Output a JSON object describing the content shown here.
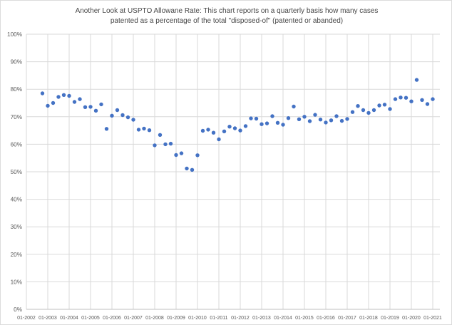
{
  "title": {
    "line1": "Another Look at USPTO Allowane Rate: This chart reports on a quarterly basis how many cases",
    "line2": "patented as a percentage of the total \"disposed-of\" (patented or abanded)"
  },
  "chart_data": {
    "type": "scatter",
    "title": "Another Look at USPTO Allowane Rate: This chart reports on a quarterly basis how many cases patented as a percentage of the total \"disposed-of\" (patented or abanded)",
    "xlabel": "",
    "ylabel": "",
    "ylim": [
      0,
      100
    ],
    "grid": true,
    "legend": false,
    "y_tick_labels": [
      "0%",
      "10%",
      "20%",
      "30%",
      "40%",
      "50%",
      "60%",
      "70%",
      "80%",
      "90%",
      "100%"
    ],
    "x_tick_labels": [
      "01-2002",
      "01-2003",
      "01-2004",
      "01-2005",
      "01-2006",
      "01-2007",
      "01-2008",
      "01-2009",
      "01-2010",
      "01-2011",
      "01-2012",
      "01-2013",
      "01-2014",
      "01-2015",
      "01-2016",
      "01-2017",
      "01-2018",
      "01-2019",
      "01-2020",
      "01-2021"
    ],
    "x": [
      "10-2002",
      "01-2003",
      "04-2003",
      "07-2003",
      "10-2003",
      "01-2004",
      "04-2004",
      "07-2004",
      "10-2004",
      "01-2005",
      "04-2005",
      "07-2005",
      "10-2005",
      "01-2006",
      "04-2006",
      "07-2006",
      "10-2006",
      "01-2007",
      "04-2007",
      "07-2007",
      "10-2007",
      "01-2008",
      "04-2008",
      "07-2008",
      "10-2008",
      "01-2009",
      "04-2009",
      "07-2009",
      "10-2009",
      "01-2010",
      "04-2010",
      "07-2010",
      "10-2010",
      "01-2011",
      "04-2011",
      "07-2011",
      "10-2011",
      "01-2012",
      "04-2012",
      "07-2012",
      "10-2012",
      "01-2013",
      "04-2013",
      "07-2013",
      "10-2013",
      "01-2014",
      "04-2014",
      "07-2014",
      "10-2014",
      "01-2015",
      "04-2015",
      "07-2015",
      "10-2015",
      "01-2016",
      "04-2016",
      "07-2016",
      "10-2016",
      "01-2017",
      "04-2017",
      "07-2017",
      "10-2017",
      "01-2018",
      "04-2018",
      "07-2018",
      "10-2018",
      "01-2019",
      "04-2019",
      "07-2019",
      "10-2019",
      "01-2020",
      "04-2020",
      "07-2020",
      "10-2020",
      "01-2021"
    ],
    "values": [
      78.5,
      74.0,
      75.0,
      77.2,
      77.9,
      77.6,
      75.4,
      76.4,
      73.5,
      73.6,
      72.2,
      74.5,
      65.6,
      70.4,
      72.4,
      70.6,
      69.8,
      68.9,
      65.3,
      65.7,
      65.1,
      59.6,
      63.4,
      60.0,
      60.2,
      56.1,
      56.7,
      51.2,
      50.7,
      56.0,
      64.9,
      65.3,
      64.2,
      61.8,
      64.7,
      66.4,
      65.8,
      65.0,
      66.6,
      69.4,
      69.3,
      67.3,
      67.6,
      70.2,
      67.8,
      67.1,
      69.5,
      73.7,
      69.1,
      70.0,
      68.4,
      70.7,
      69.0,
      67.9,
      68.7,
      70.2,
      68.5,
      69.2,
      71.7,
      73.9,
      72.4,
      71.4,
      72.4,
      74.1,
      74.4,
      72.8,
      76.4,
      77.0,
      76.9,
      75.6,
      83.4,
      76.1,
      74.6,
      76.4
    ],
    "colors": {
      "marker": "#4472c4",
      "gridline": "#d9d9d9",
      "axis_line": "#bfbfbf",
      "tick_label": "#595959",
      "title": "#474747"
    }
  }
}
